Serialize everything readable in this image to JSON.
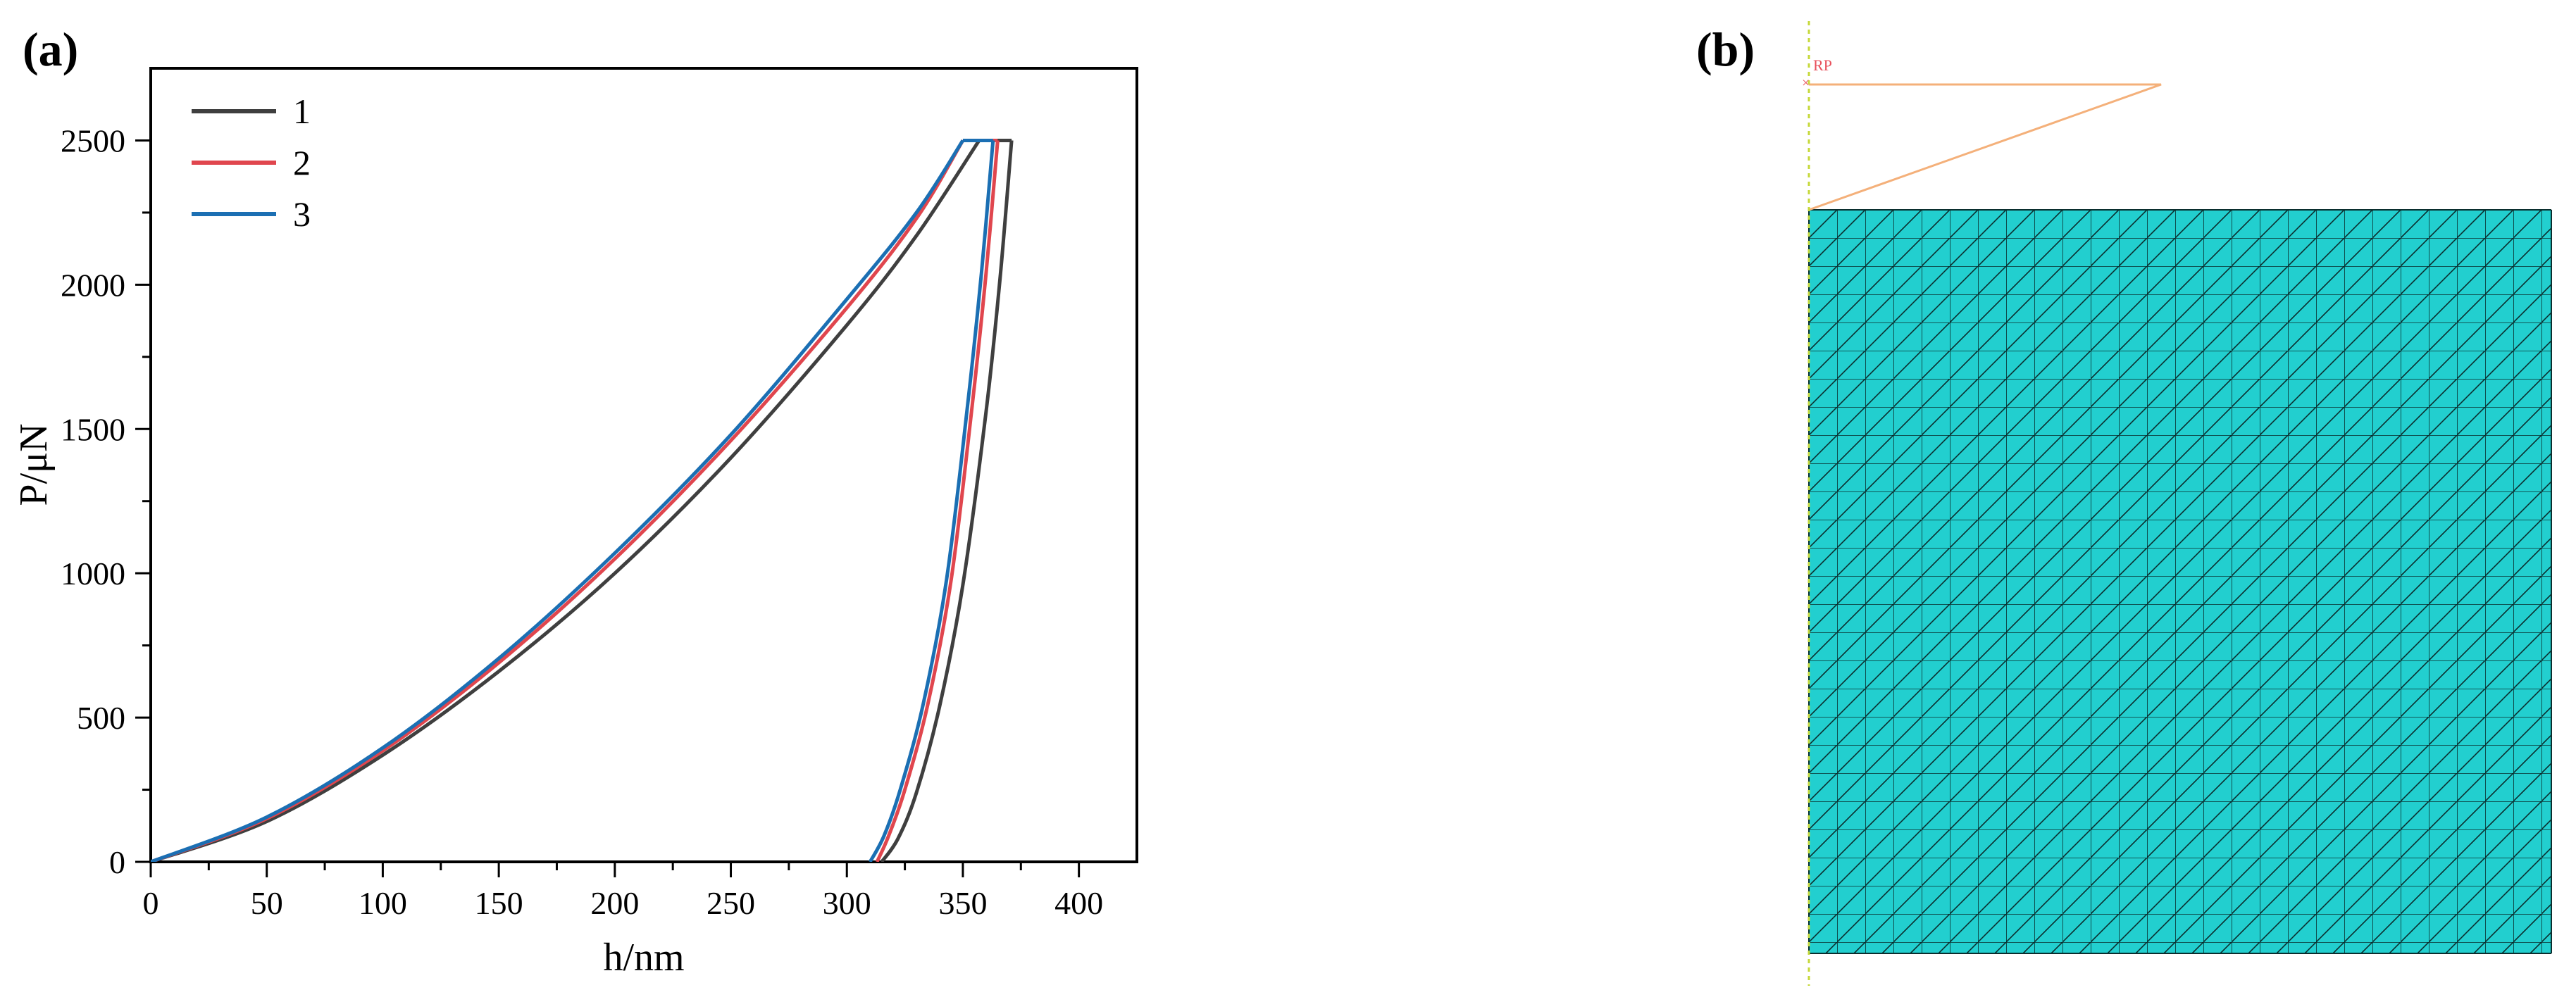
{
  "panels": {
    "a": {
      "label": "(a)"
    },
    "b": {
      "label": "(b)",
      "rp_label": "RP"
    }
  },
  "colors": {
    "series1": "#3f3f3f",
    "series2": "#e0464e",
    "series3": "#1b6fb3",
    "mesh_fill": "#22cfcf",
    "mesh_line": "#0a2e2e",
    "indenter": "#f4b07a",
    "axis_line": "#c6d83a",
    "rp_text": "#e8505b"
  },
  "chart_data": {
    "type": "line",
    "title": "",
    "xlabel": "h/nm",
    "ylabel": "P/μN",
    "xlim": [
      0,
      425
    ],
    "ylim": [
      0,
      2750
    ],
    "xticks": [
      0,
      50,
      100,
      150,
      200,
      250,
      300,
      350,
      400
    ],
    "yticks": [
      0,
      500,
      1000,
      1500,
      2000,
      2500
    ],
    "grid": false,
    "legend_position": "top-left",
    "series": [
      {
        "name": "1",
        "color": "#3f3f3f",
        "loading": {
          "x": [
            0,
            50,
            100,
            150,
            200,
            250,
            300,
            330,
            357
          ],
          "y": [
            0,
            140,
            370,
            660,
            1000,
            1400,
            1860,
            2170,
            2500
          ]
        },
        "hold": {
          "x": [
            357,
            371
          ],
          "y": [
            2500,
            2500
          ]
        },
        "unloading": {
          "x": [
            371,
            366,
            360,
            350,
            340,
            330,
            322,
            315
          ],
          "y": [
            2500,
            2020,
            1560,
            960,
            540,
            240,
            80,
            0
          ]
        }
      },
      {
        "name": "2",
        "color": "#e0464e",
        "loading": {
          "x": [
            0,
            50,
            100,
            150,
            200,
            250,
            300,
            330,
            350
          ],
          "y": [
            0,
            150,
            385,
            690,
            1050,
            1460,
            1920,
            2230,
            2500
          ]
        },
        "hold": {
          "x": [
            350,
            365
          ],
          "y": [
            2500,
            2500
          ]
        },
        "unloading": {
          "x": [
            365,
            360,
            354,
            345,
            335,
            325,
            318,
            313
          ],
          "y": [
            2500,
            2040,
            1580,
            980,
            550,
            250,
            90,
            0
          ]
        }
      },
      {
        "name": "3",
        "color": "#1b6fb3",
        "loading": {
          "x": [
            0,
            50,
            100,
            150,
            200,
            250,
            300,
            330,
            350
          ],
          "y": [
            0,
            155,
            395,
            705,
            1070,
            1480,
            1950,
            2250,
            2500
          ]
        },
        "hold": {
          "x": [
            350,
            363
          ],
          "y": [
            2500,
            2500
          ]
        },
        "unloading": {
          "x": [
            363,
            358,
            352,
            343,
            333,
            323,
            316,
            310
          ],
          "y": [
            2500,
            2040,
            1580,
            980,
            550,
            250,
            90,
            0
          ]
        }
      }
    ]
  }
}
